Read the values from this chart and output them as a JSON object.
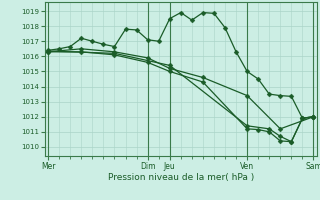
{
  "bg_color": "#cceee4",
  "grid_color": "#aad4c8",
  "line_color": "#1a5c28",
  "xlabel": "Pression niveau de la mer( hPa )",
  "xtick_labels": [
    "Mer",
    "Dim",
    "Jeu",
    "Ven",
    "Sam"
  ],
  "xtick_positions": [
    0,
    9,
    11,
    18,
    24
  ],
  "vline_positions": [
    0,
    9,
    11,
    18,
    24
  ],
  "yticks": [
    1010,
    1011,
    1012,
    1013,
    1014,
    1015,
    1016,
    1017,
    1018,
    1019
  ],
  "ylim": [
    1009.4,
    1019.6
  ],
  "xlim": [
    -0.3,
    24.3
  ],
  "series1": {
    "x": [
      0,
      1,
      2,
      3,
      4,
      5,
      6,
      7,
      8,
      9,
      10,
      11,
      12,
      13,
      14,
      15,
      16,
      17,
      18,
      19,
      20,
      21,
      22,
      23,
      24
    ],
    "y": [
      1016.4,
      1016.5,
      1016.65,
      1017.2,
      1017.0,
      1016.8,
      1016.65,
      1017.8,
      1017.75,
      1017.1,
      1017.0,
      1018.5,
      1018.9,
      1018.4,
      1018.9,
      1018.85,
      1017.9,
      1016.3,
      1015.0,
      1014.5,
      1013.5,
      1013.4,
      1013.35,
      1011.9,
      1012.0
    ]
  },
  "series2": {
    "x": [
      0,
      3,
      6,
      9,
      11,
      14,
      18,
      21,
      24
    ],
    "y": [
      1016.3,
      1016.5,
      1016.3,
      1015.9,
      1015.2,
      1014.6,
      1013.4,
      1011.2,
      1012.0
    ]
  },
  "series3": {
    "x": [
      0,
      3,
      6,
      9,
      11,
      14,
      18,
      19,
      20,
      21,
      22,
      23,
      24
    ],
    "y": [
      1016.3,
      1016.3,
      1016.1,
      1015.6,
      1015.0,
      1014.3,
      1011.2,
      1011.15,
      1011.0,
      1010.4,
      1010.35,
      1011.9,
      1012.0
    ]
  },
  "series4": {
    "x": [
      0,
      6,
      11,
      18,
      20,
      21,
      22,
      23,
      24
    ],
    "y": [
      1016.35,
      1016.2,
      1015.4,
      1011.4,
      1011.2,
      1010.7,
      1010.35,
      1011.9,
      1012.0
    ]
  }
}
